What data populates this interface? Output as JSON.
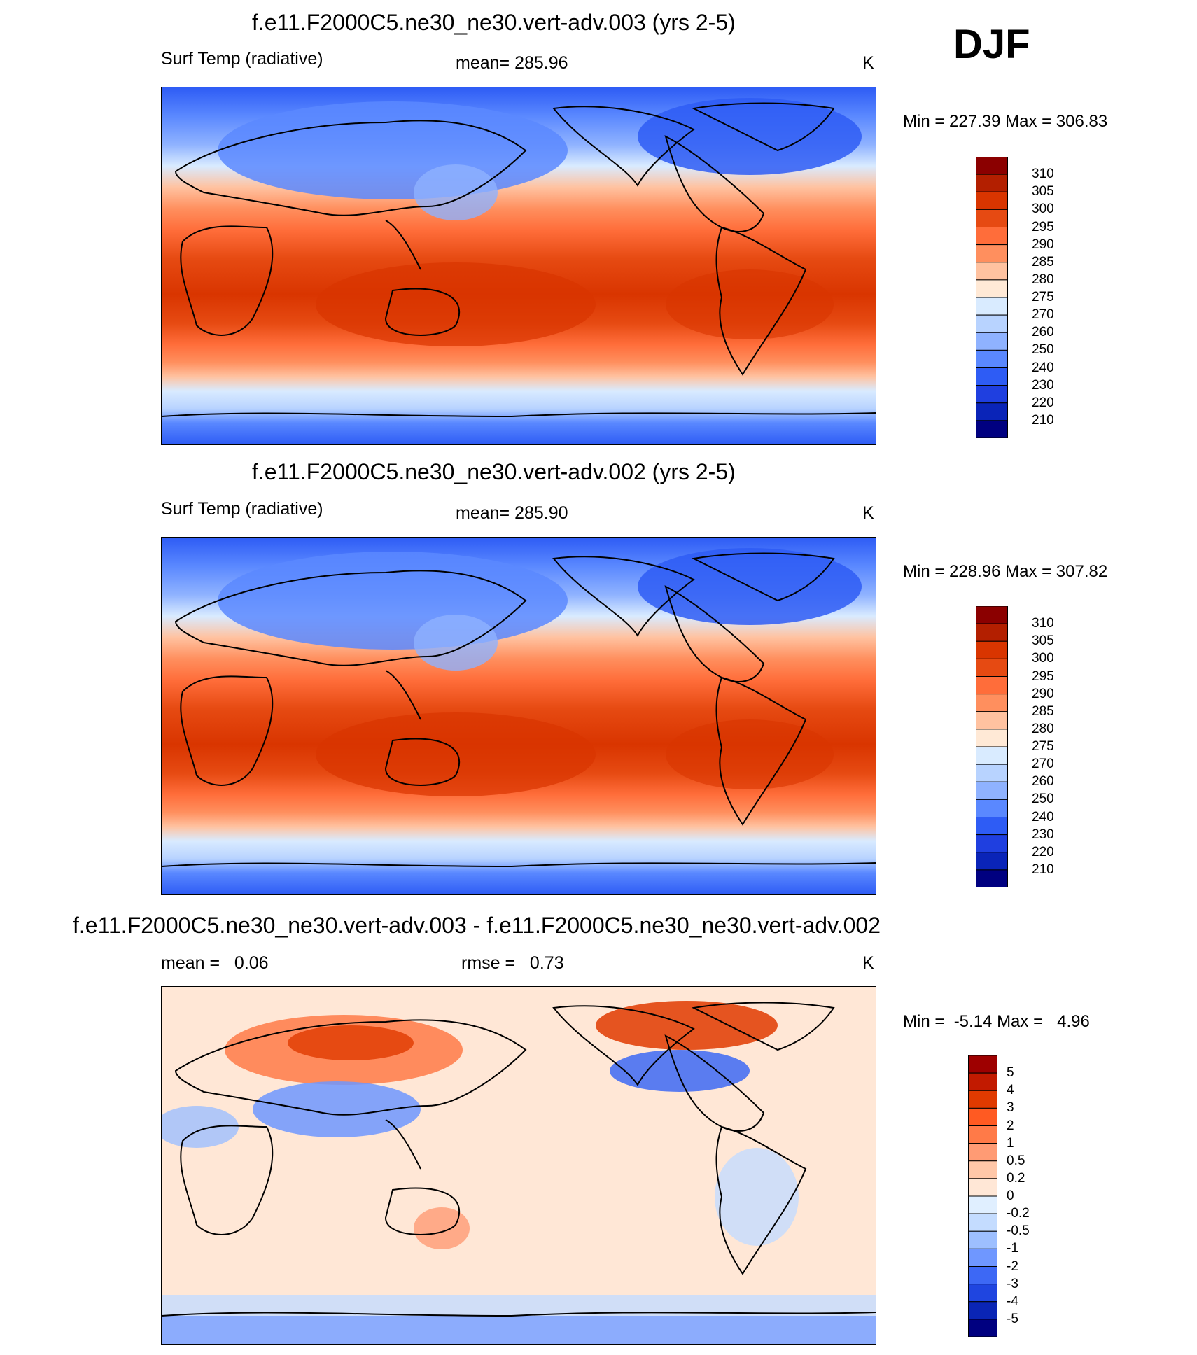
{
  "season": "DJF",
  "panels": [
    {
      "title": "f.e11.F2000C5.ne30_ne30.vert-adv.003 (yrs 2-5)",
      "left_label": "Surf Temp (radiative)",
      "center_label": "mean= 285.96",
      "units": "K",
      "minmax": "Min = 227.39 Max = 306.83",
      "type": "absolute",
      "colorbar": {
        "labels": [
          "310",
          "305",
          "300",
          "295",
          "290",
          "285",
          "280",
          "275",
          "270",
          "260",
          "250",
          "240",
          "230",
          "220",
          "210"
        ],
        "colors": [
          "#8b0000",
          "#b31f00",
          "#d93500",
          "#e64a12",
          "#ff6d3a",
          "#ff8f5e",
          "#ffc2a0",
          "#ffe9d6",
          "#d9ebff",
          "#b8d3ff",
          "#8fb2ff",
          "#5a88ff",
          "#2e5cf5",
          "#1f3fe0",
          "#0a24b8",
          "#000080"
        ]
      }
    },
    {
      "title": "f.e11.F2000C5.ne30_ne30.vert-adv.002 (yrs 2-5)",
      "left_label": "Surf Temp (radiative)",
      "center_label": "mean= 285.90",
      "units": "K",
      "minmax": "Min = 228.96 Max = 307.82",
      "type": "absolute",
      "colorbar": {
        "labels": [
          "310",
          "305",
          "300",
          "295",
          "290",
          "285",
          "280",
          "275",
          "270",
          "260",
          "250",
          "240",
          "230",
          "220",
          "210"
        ],
        "colors": [
          "#8b0000",
          "#b31f00",
          "#d93500",
          "#e64a12",
          "#ff6d3a",
          "#ff8f5e",
          "#ffc2a0",
          "#ffe9d6",
          "#d9ebff",
          "#b8d3ff",
          "#8fb2ff",
          "#5a88ff",
          "#2e5cf5",
          "#1f3fe0",
          "#0a24b8",
          "#000080"
        ]
      }
    },
    {
      "title": "f.e11.F2000C5.ne30_ne30.vert-adv.003 - f.e11.F2000C5.ne30_ne30.vert-adv.002",
      "left_label": "mean =   0.06",
      "center_label": "rmse =   0.73",
      "units": "K",
      "minmax": "Min =  -5.14 Max =   4.96",
      "type": "difference",
      "colorbar": {
        "labels": [
          "5",
          "4",
          "3",
          "2",
          "1",
          "0.5",
          "0.2",
          "0",
          "-0.2",
          "-0.5",
          "-1",
          "-2",
          "-3",
          "-4",
          "-5"
        ],
        "colors": [
          "#9e0000",
          "#c21a00",
          "#e03a00",
          "#ff5a22",
          "#ff7a48",
          "#ff9b74",
          "#ffc7a8",
          "#ffe7d6",
          "#e0efff",
          "#c4dcff",
          "#9dbfff",
          "#6f97ff",
          "#3d68f5",
          "#1f45e0",
          "#0a25b5",
          "#000080"
        ]
      }
    }
  ]
}
